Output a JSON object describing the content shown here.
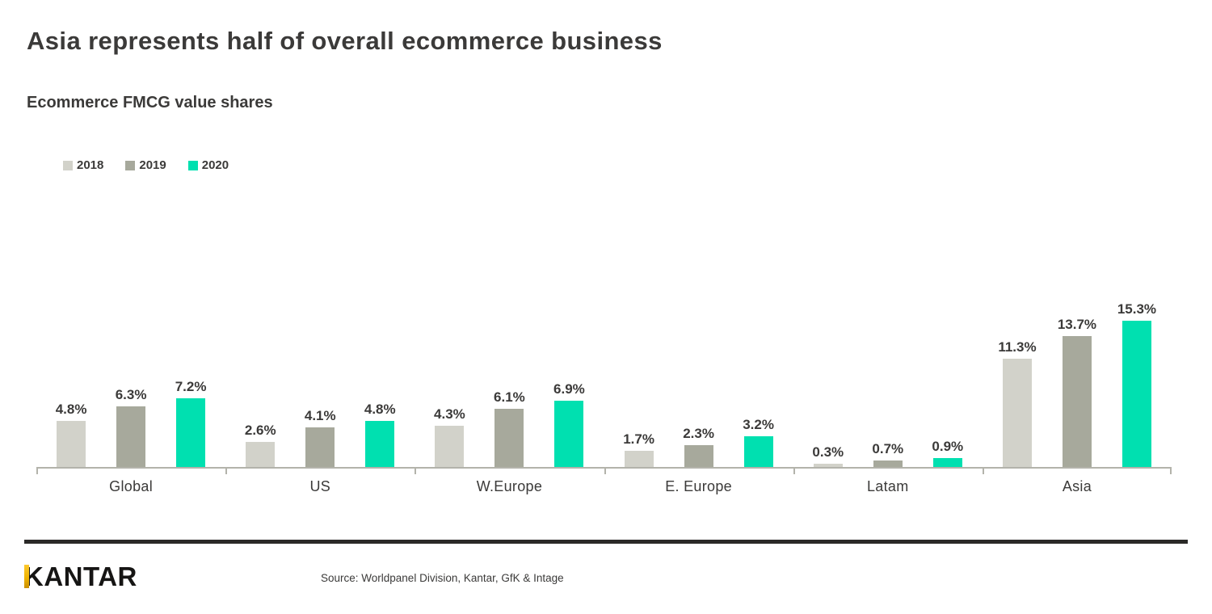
{
  "header": {
    "title": "Asia represents half of overall ecommerce business",
    "subtitle": "Ecommerce FMCG value shares"
  },
  "chart_data": {
    "type": "bar",
    "title": "Ecommerce FMCG value shares",
    "categories": [
      "Global",
      "US",
      "W.Europe",
      "E. Europe",
      "Latam",
      "Asia"
    ],
    "series": [
      {
        "name": "2018",
        "color": "#d2d2ca",
        "values": [
          4.8,
          2.6,
          4.3,
          1.7,
          0.3,
          11.3
        ]
      },
      {
        "name": "2019",
        "color": "#a7a99c",
        "values": [
          6.3,
          4.1,
          6.1,
          2.3,
          0.7,
          13.7
        ]
      },
      {
        "name": "2020",
        "color": "#00e0b0",
        "values": [
          7.2,
          4.8,
          6.9,
          3.2,
          0.9,
          15.3
        ]
      }
    ],
    "value_suffix": "%",
    "data_labels": true,
    "grid": false,
    "legend_position": "top-left",
    "ylim": [
      0,
      16.5
    ],
    "axis_color": "#b3b3ab"
  },
  "footer": {
    "logo_text": "KANTAR",
    "source": "Source: Worldpanel Division, Kantar, GfK & Intage"
  },
  "colors": {
    "text": "#3b3a39",
    "series_2018": "#d2d2ca",
    "series_2019": "#a7a99c",
    "series_2020": "#00e0b0",
    "axis": "#b3b3ab",
    "divider": "#2b2a28",
    "logo_accent": "#f0b400"
  }
}
